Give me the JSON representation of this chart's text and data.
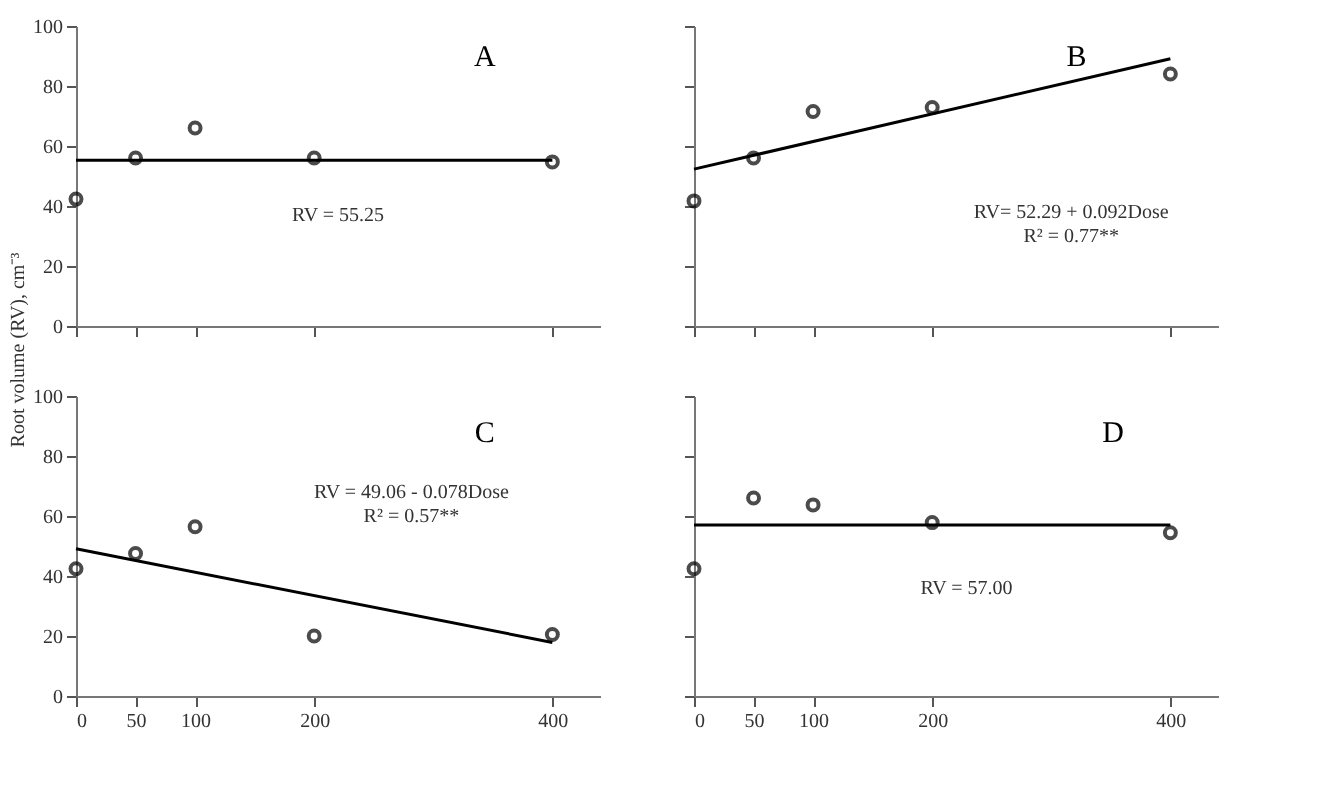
{
  "chart_data": [
    {
      "type": "scatter",
      "title": "A",
      "ylabel": "Root volume (RV), cm⁻³",
      "annotations": [
        "RV = 55.25"
      ],
      "xlim": [
        0,
        440
      ],
      "ylim": [
        0,
        100
      ],
      "xticks": [
        0,
        50,
        100,
        200,
        400
      ],
      "yticks": [
        0,
        20,
        40,
        60,
        80,
        100
      ],
      "grid": false,
      "tick_labels": "y",
      "series": [
        {
          "type": "scatter",
          "color": "#000000",
          "marker": "circle",
          "x": [
            0,
            50,
            100,
            200,
            400
          ],
          "values": [
            42.3,
            56,
            66,
            56,
            54.7
          ]
        },
        {
          "type": "line",
          "color": "#000000",
          "x": [
            0,
            400
          ],
          "values": [
            55.25,
            55.25
          ]
        }
      ]
    },
    {
      "type": "scatter",
      "title": "B",
      "annotations": [
        "RV= 52.29 + 0.092Dose",
        "R² = 0.77**"
      ],
      "xlim": [
        0,
        440
      ],
      "ylim": [
        0,
        100
      ],
      "xticks": [
        0,
        50,
        100,
        200,
        400
      ],
      "yticks": [
        0,
        20,
        40,
        60,
        80,
        100
      ],
      "grid": false,
      "tick_labels": false,
      "series": [
        {
          "type": "scatter",
          "color": "#000000",
          "marker": "circle",
          "x": [
            0,
            50,
            100,
            200,
            400
          ],
          "values": [
            41.7,
            56,
            71.5,
            72.8,
            84
          ]
        },
        {
          "type": "line",
          "color": "#000000",
          "x": [
            0,
            400
          ],
          "values": [
            52.29,
            89.09
          ]
        }
      ]
    },
    {
      "type": "scatter",
      "title": "C",
      "annotations": [
        "RV = 49.06 - 0.078Dose",
        "R² = 0.57**"
      ],
      "xlim": [
        0,
        440
      ],
      "ylim": [
        0,
        100
      ],
      "xticks": [
        0,
        50,
        100,
        200,
        400
      ],
      "yticks": [
        0,
        20,
        40,
        60,
        80,
        100
      ],
      "grid": false,
      "series": [
        {
          "type": "scatter",
          "color": "#000000",
          "marker": "circle",
          "x": [
            0,
            50,
            100,
            200,
            400
          ],
          "values": [
            42.4,
            47.5,
            56.4,
            20,
            20.5
          ]
        },
        {
          "type": "line",
          "color": "#000000",
          "x": [
            0,
            400
          ],
          "values": [
            49.06,
            17.86
          ]
        }
      ]
    },
    {
      "type": "scatter",
      "title": "D",
      "annotations": [
        "RV = 57.00"
      ],
      "xlim": [
        0,
        440
      ],
      "ylim": [
        0,
        100
      ],
      "xticks": [
        0,
        50,
        100,
        200,
        400
      ],
      "yticks": [
        0,
        20,
        40,
        60,
        80,
        100
      ],
      "grid": false,
      "tick_labels": "x",
      "series": [
        {
          "type": "scatter",
          "color": "#000000",
          "marker": "circle",
          "x": [
            0,
            50,
            100,
            200,
            400
          ],
          "values": [
            42.4,
            66,
            63.7,
            57.8,
            54.4
          ]
        },
        {
          "type": "line",
          "color": "#000000",
          "x": [
            0,
            400
          ],
          "values": [
            57,
            57
          ]
        }
      ]
    }
  ]
}
